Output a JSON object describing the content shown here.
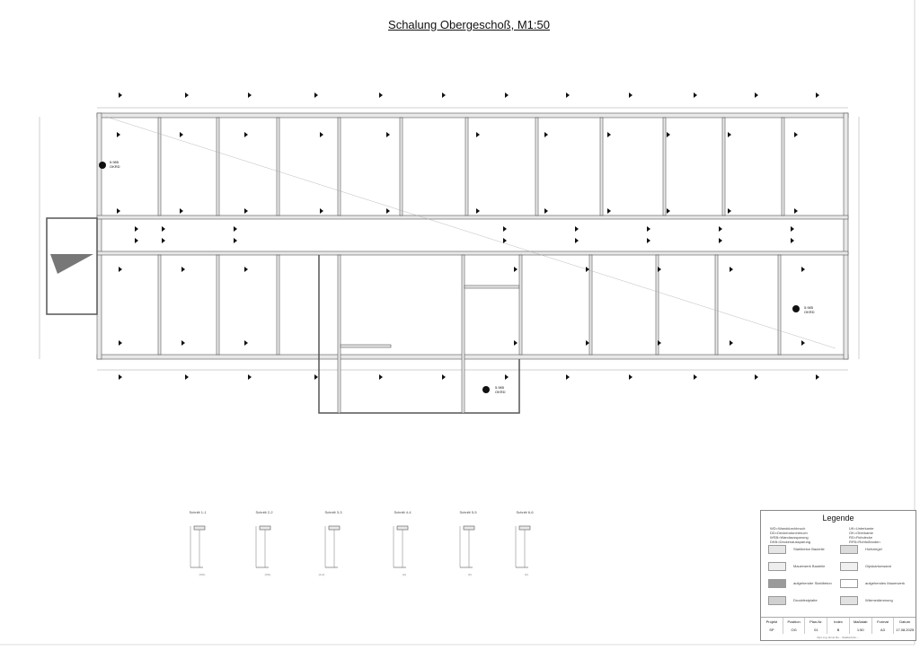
{
  "title": "Schalung Obergeschoß, M1:50",
  "elevation_markers": [
    {
      "value": "5.985",
      "label": "OKRD"
    },
    {
      "value": "5.985",
      "label": "OKRD"
    },
    {
      "value": "5.985",
      "label": "OKRD"
    }
  ],
  "sections": [
    {
      "label": "Schnitt 1-1",
      "sub": "(OG)"
    },
    {
      "label": "Schnitt 2-2",
      "sub": "(OG)"
    },
    {
      "label": "Schnitt 3-3",
      "sub": "(A-2)"
    },
    {
      "label": "Schnitt 4-4",
      "sub": "(A)"
    },
    {
      "label": "Schnitt 5-5",
      "sub": "(F)"
    },
    {
      "label": "Schnitt 6-6",
      "sub": "(F)"
    }
  ],
  "legend": {
    "title": "Legende",
    "abbr_left": [
      "WD=Wanddurchbruch",
      "DD=Deckendurchbruch",
      "WSB=Wandaussparung",
      "DKB=Deckenaussparung"
    ],
    "abbr_right": [
      "UK=Unterkante",
      "OK=Oberkante",
      "RD=Rohdecke",
      "RFB=Rohfußboden"
    ],
    "items": [
      {
        "label": "Stahlbeton Bauteile",
        "color": "#e6e6e6"
      },
      {
        "label": "Hohlziegel",
        "color": "#dcdcdc"
      },
      {
        "label": "Mauerwerk Bauteile",
        "color": "#eeeeee"
      },
      {
        "label": "Gipskartonwand",
        "color": "#f0f0f0"
      },
      {
        "label": "aufgehender Stahlbeton",
        "color": "#9a9a9a"
      },
      {
        "label": "aufgehendes Mauerwerk",
        "color": "#ffffff"
      },
      {
        "label": "Druckfestplatte",
        "color": "#d0d0d0"
      },
      {
        "label": "Wärmedämmung",
        "color": "#e2e2e2"
      }
    ]
  },
  "title_block": {
    "headers": [
      "Projekt",
      "Position",
      "Plan-Nr.",
      "Index",
      "Maßstab",
      "Format",
      "Datum"
    ],
    "values": [
      "SP",
      "OG",
      "01",
      "B",
      "1:50",
      "A3",
      "17.08.2025"
    ],
    "footer": "Dipl.-Ing. Ernst Ru... Statikerbüro ..."
  }
}
